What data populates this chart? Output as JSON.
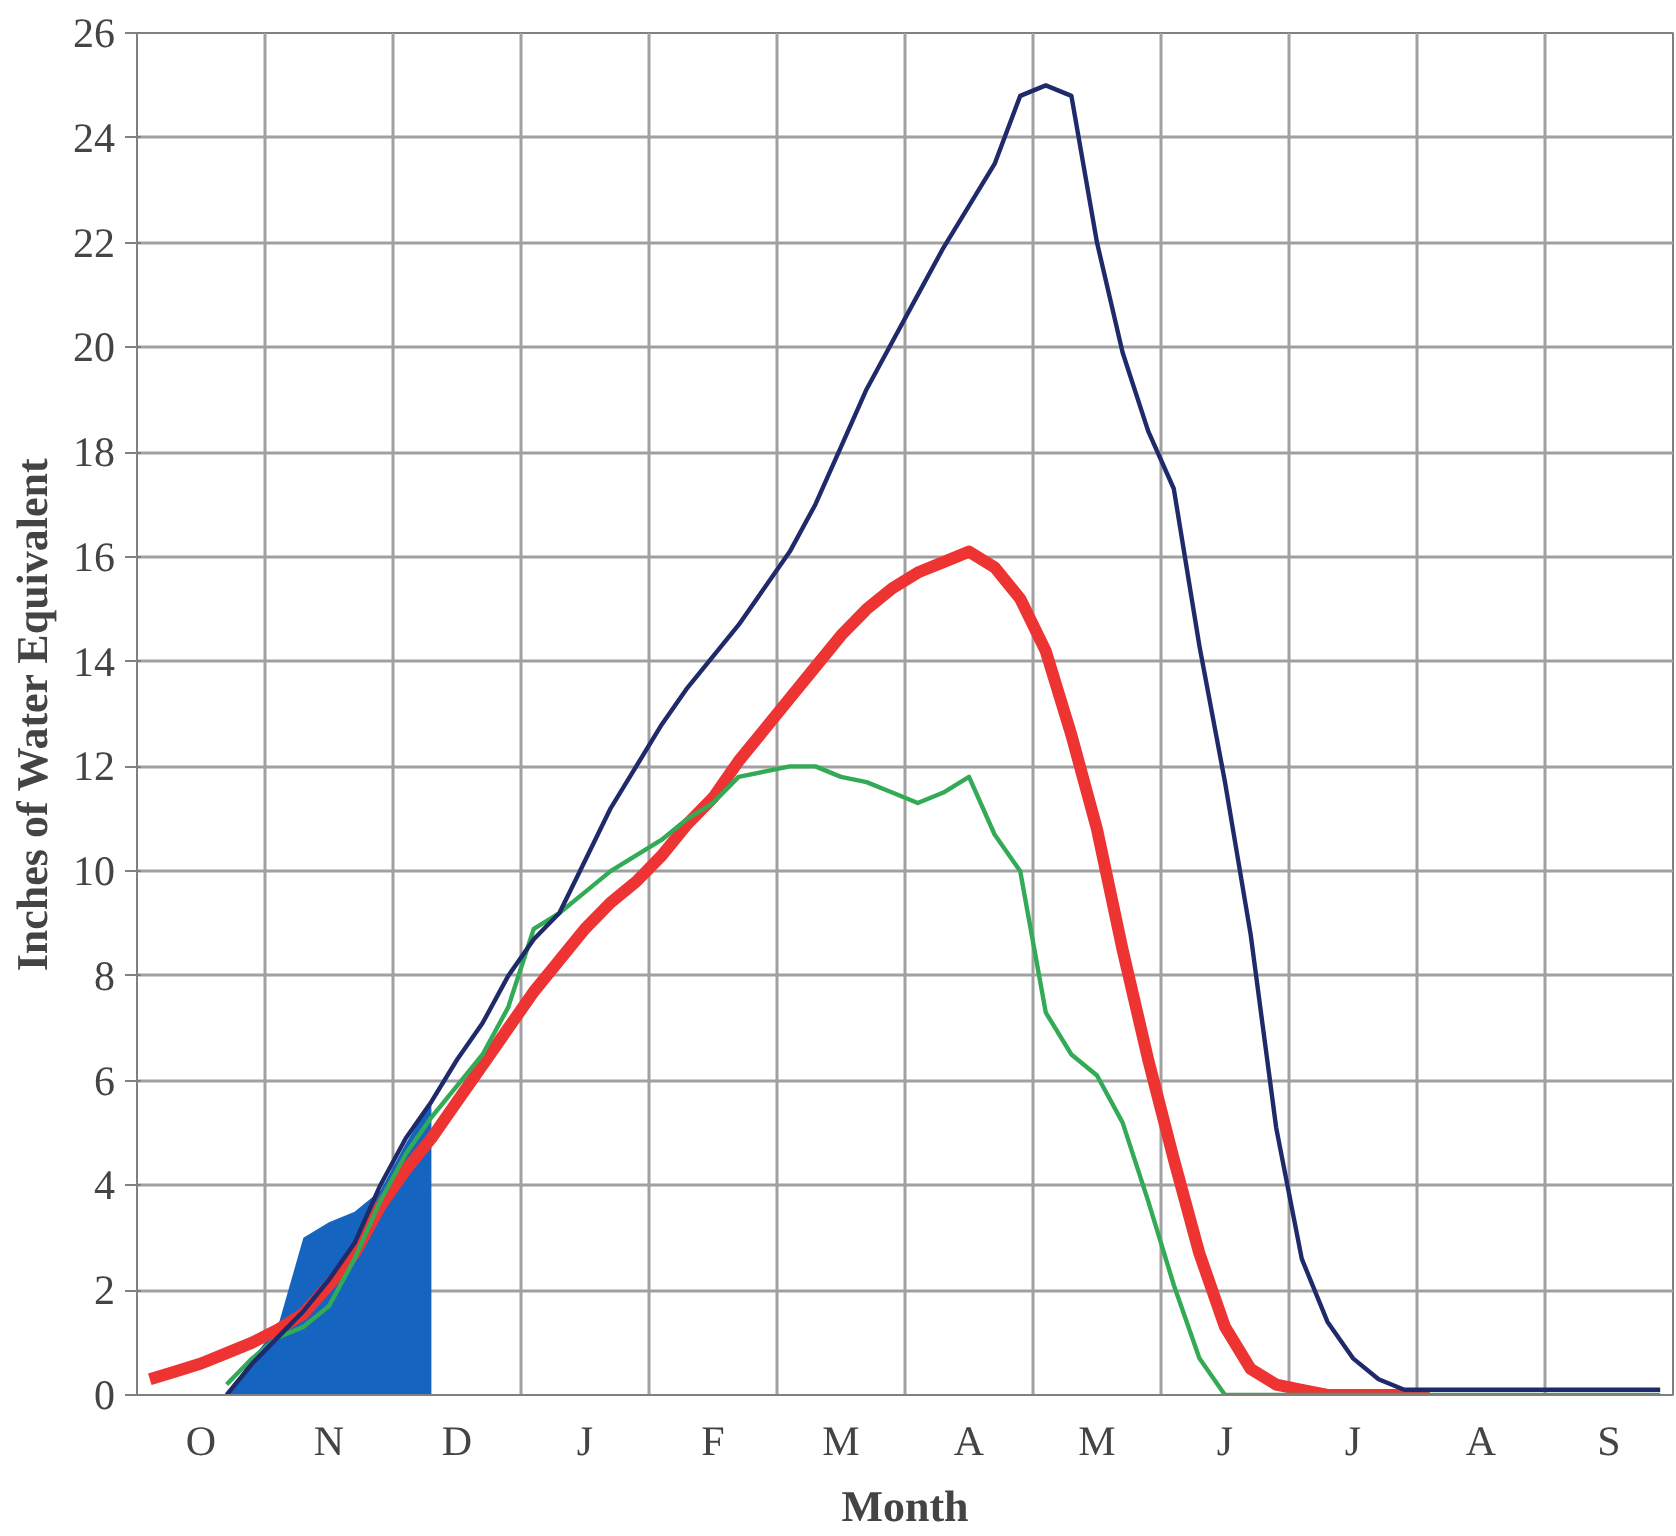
{
  "chart_data": {
    "type": "line",
    "xlabel": "Month",
    "ylabel": "Inches of Water Equivalent",
    "categories": [
      null,
      null,
      "O",
      null,
      null,
      null,
      null,
      "N",
      null,
      null,
      null,
      null,
      "D",
      null,
      null,
      null,
      null,
      "J",
      null,
      null,
      null,
      null,
      "F",
      null,
      null,
      null,
      null,
      "M",
      null,
      null,
      null,
      null,
      "A",
      null,
      null,
      null,
      null,
      "M",
      null,
      null,
      null,
      null,
      "J",
      null,
      null,
      null,
      null,
      "J",
      null,
      null,
      null,
      null,
      "A",
      null,
      null,
      null,
      null,
      "S",
      null,
      null
    ],
    "ylim": [
      0,
      26
    ],
    "yticks": [
      0,
      2,
      4,
      6,
      8,
      10,
      12,
      14,
      16,
      18,
      20,
      22,
      24,
      26
    ],
    "grid": true,
    "line_style": "solid",
    "series": [
      {
        "type": "area",
        "color": "#1565c0",
        "values": [
          null,
          null,
          null,
          0,
          0.7,
          1.3,
          3.0,
          3.3,
          3.5,
          3.9,
          4.8,
          5.6,
          null,
          null,
          null,
          null,
          null,
          null,
          null,
          null,
          null,
          null,
          null,
          null,
          null,
          null,
          null,
          null,
          null,
          null,
          null,
          null,
          null,
          null,
          null,
          null,
          null,
          null,
          null,
          null,
          null,
          null,
          null,
          null,
          null,
          null,
          null,
          null,
          null,
          null,
          null,
          null,
          null,
          null,
          null,
          null,
          null,
          null,
          null,
          null
        ]
      },
      {
        "color": "#ee3333",
        "values": [
          0.3,
          0.45,
          0.6,
          0.8,
          1.0,
          1.25,
          1.55,
          2.1,
          2.7,
          3.6,
          4.3,
          4.9,
          5.6,
          6.3,
          7.0,
          7.7,
          8.3,
          8.9,
          9.4,
          9.8,
          10.3,
          10.9,
          11.4,
          12.1,
          12.7,
          13.3,
          13.9,
          14.5,
          15.0,
          15.4,
          15.7,
          15.9,
          16.1,
          15.8,
          15.2,
          14.2,
          12.6,
          10.8,
          8.5,
          6.4,
          4.5,
          2.7,
          1.3,
          0.5,
          0.2,
          0.1,
          0,
          0,
          0,
          0,
          0,
          null,
          null,
          null,
          null,
          null,
          null,
          null,
          null,
          null
        ]
      },
      {
        "color": "#33aa55",
        "values": [
          null,
          null,
          null,
          0.2,
          0.7,
          1.1,
          1.3,
          1.7,
          2.6,
          3.7,
          4.6,
          5.3,
          5.9,
          6.5,
          7.4,
          8.9,
          9.2,
          9.6,
          10.0,
          10.3,
          10.6,
          11.0,
          11.3,
          11.8,
          11.9,
          12.0,
          12.0,
          11.8,
          11.7,
          11.5,
          11.3,
          11.5,
          11.8,
          10.7,
          10.0,
          7.3,
          6.5,
          6.1,
          5.2,
          3.7,
          2.1,
          0.7,
          0,
          0,
          0,
          0,
          0,
          0,
          0,
          0,
          0,
          0,
          0,
          0,
          0,
          0,
          0,
          0,
          0,
          0
        ]
      },
      {
        "color": "#1f2a6b",
        "values": [
          null,
          null,
          null,
          0,
          0.6,
          1.1,
          1.6,
          2.2,
          2.9,
          4.0,
          4.9,
          5.6,
          6.4,
          7.1,
          8.0,
          8.7,
          9.2,
          10.2,
          11.2,
          12.0,
          12.8,
          13.5,
          14.1,
          14.7,
          15.4,
          16.1,
          17.0,
          18.1,
          19.2,
          20.1,
          21.0,
          21.9,
          22.7,
          23.5,
          24.8,
          25.0,
          24.8,
          22.0,
          19.9,
          18.4,
          17.3,
          14.3,
          11.7,
          8.8,
          5.1,
          2.6,
          1.4,
          0.7,
          0.3,
          0.1,
          0.1,
          0.1,
          0.1,
          0.1,
          0.1,
          0.1,
          0.1,
          0.1,
          0.1,
          0.1
        ]
      }
    ]
  }
}
